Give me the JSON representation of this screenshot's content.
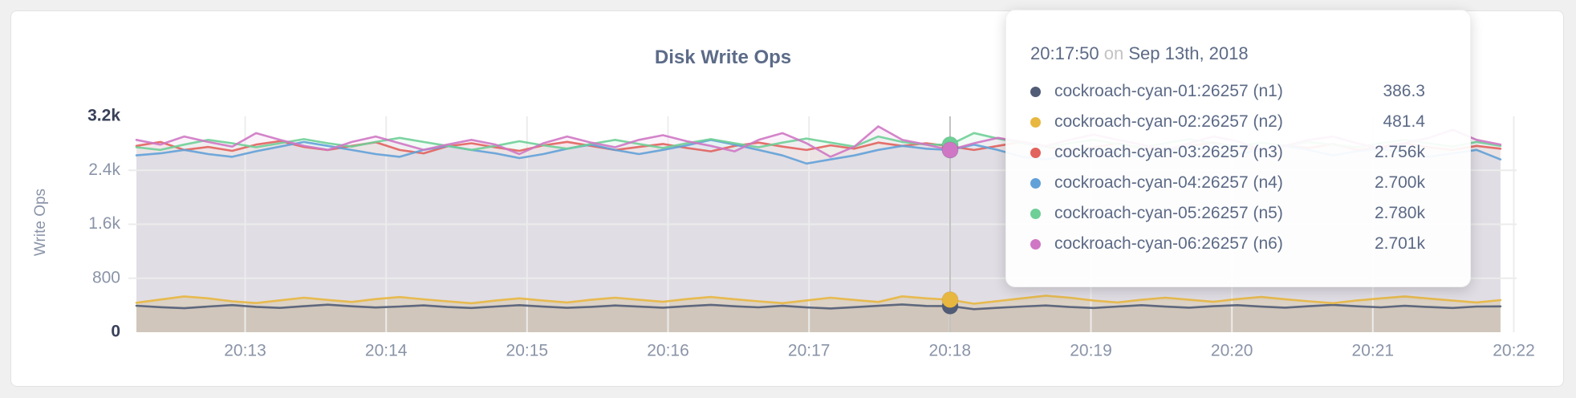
{
  "card": {
    "background": "#ffffff",
    "border_color": "#e2e2e2"
  },
  "chart_data": {
    "type": "line",
    "title": "Disk Write Ops",
    "ylabel": "Write Ops",
    "ylim": [
      0,
      3200
    ],
    "grid": true,
    "legend_position": "tooltip",
    "x_ticks": [
      "20:13",
      "20:14",
      "20:15",
      "20:16",
      "20:17",
      "20:18",
      "20:19",
      "20:20",
      "20:21",
      "20:22"
    ],
    "y_ticks": [
      {
        "label": "0",
        "value": 0,
        "emphasis": true,
        "gridline": false
      },
      {
        "label": "800",
        "value": 800,
        "emphasis": false,
        "gridline": true
      },
      {
        "label": "1.6k",
        "value": 1600,
        "emphasis": false,
        "gridline": true
      },
      {
        "label": "2.4k",
        "value": 2400,
        "emphasis": false,
        "gridline": true
      },
      {
        "label": "3.2k",
        "value": 3200,
        "emphasis": true,
        "gridline": false
      }
    ],
    "hover": {
      "index": 34,
      "time": "20:17:50",
      "date": "Sep 13th, 2018"
    },
    "series": [
      {
        "name": "cockroach-cyan-01:26257",
        "node": "n1",
        "color": "#515c76",
        "fill_opacity": 0.12,
        "values": [
          392,
          371,
          356,
          381,
          402,
          376,
          360,
          386,
          408,
          384,
          366,
          381,
          397,
          374,
          359,
          381,
          401,
          379,
          362,
          376,
          396,
          380,
          364,
          386,
          406,
          384,
          369,
          391,
          368,
          352,
          371,
          391,
          412,
          389,
          386.3,
          341,
          362,
          381,
          396,
          374,
          359,
          381,
          401,
          379,
          364,
          386,
          401,
          379,
          364,
          386,
          406,
          384,
          369,
          391,
          374,
          359,
          381,
          383
        ]
      },
      {
        "name": "cockroach-cyan-02:26257",
        "node": "n2",
        "color": "#e8b740",
        "fill_opacity": 0.22,
        "values": [
          436,
          484,
          531,
          502,
          458,
          432,
          472,
          512,
          478,
          449,
          491,
          521,
          488,
          458,
          429,
          469,
          502,
          469,
          441,
          481,
          512,
          481,
          451,
          491,
          522,
          489,
          458,
          431,
          471,
          512,
          478,
          449,
          532,
          502,
          481.4,
          422,
          462,
          502,
          541,
          512,
          469,
          441,
          481,
          512,
          481,
          451,
          491,
          522,
          489,
          458,
          431,
          471,
          502,
          531,
          499,
          469,
          441,
          476
        ]
      },
      {
        "name": "cockroach-cyan-03:26257",
        "node": "n3",
        "color": "#e2625d",
        "fill_opacity": 0.085,
        "values": [
          2762,
          2821,
          2703,
          2747,
          2688,
          2781,
          2832,
          2747,
          2701,
          2762,
          2816,
          2702,
          2652,
          2756,
          2801,
          2741,
          2688,
          2771,
          2822,
          2762,
          2701,
          2747,
          2791,
          2731,
          2681,
          2762,
          2811,
          2751,
          2701,
          2771,
          2721,
          2811,
          2762,
          2801,
          2756,
          2701,
          2762,
          2821,
          2751,
          2691,
          2741,
          2801,
          2731,
          2691,
          2762,
          2811,
          2741,
          2701,
          2771,
          2731,
          2791,
          2701,
          2751,
          2801,
          2741,
          2701,
          2762,
          2721
        ]
      },
      {
        "name": "cockroach-cyan-04:26257",
        "node": "n4",
        "color": "#62a1d8",
        "fill_opacity": 0.085,
        "values": [
          2622,
          2652,
          2703,
          2641,
          2601,
          2682,
          2752,
          2821,
          2762,
          2701,
          2641,
          2601,
          2703,
          2762,
          2701,
          2652,
          2581,
          2641,
          2721,
          2781,
          2701,
          2641,
          2703,
          2771,
          2851,
          2781,
          2701,
          2621,
          2501,
          2561,
          2621,
          2703,
          2762,
          2721,
          2700,
          2781,
          2701,
          2601,
          2561,
          2621,
          2701,
          2652,
          2601,
          2682,
          2741,
          2701,
          2641,
          2703,
          2762,
          2701,
          2621,
          2682,
          2721,
          2661,
          2601,
          2652,
          2703,
          2561
        ]
      },
      {
        "name": "cockroach-cyan-05:26257",
        "node": "n5",
        "color": "#6ecf97",
        "fill_opacity": 0.085,
        "values": [
          2742,
          2703,
          2781,
          2852,
          2801,
          2742,
          2801,
          2862,
          2801,
          2752,
          2821,
          2881,
          2821,
          2762,
          2703,
          2762,
          2831,
          2771,
          2721,
          2791,
          2852,
          2791,
          2731,
          2801,
          2862,
          2801,
          2742,
          2811,
          2871,
          2811,
          2752,
          2901,
          2821,
          2781,
          2780,
          2952,
          2871,
          2801,
          2742,
          2801,
          2852,
          2791,
          2742,
          2801,
          2862,
          2801,
          2752,
          2811,
          2762,
          2821,
          2781,
          2742,
          2801,
          2852,
          2801,
          2752,
          2821,
          2762
        ]
      },
      {
        "name": "cockroach-cyan-06:26257",
        "node": "n6",
        "color": "#cf77c4",
        "fill_opacity": 0.085,
        "values": [
          2852,
          2781,
          2901,
          2821,
          2752,
          2951,
          2852,
          2762,
          2703,
          2821,
          2901,
          2801,
          2703,
          2781,
          2852,
          2781,
          2641,
          2801,
          2901,
          2811,
          2742,
          2852,
          2921,
          2831,
          2762,
          2681,
          2852,
          2951,
          2801,
          2601,
          2752,
          3051,
          2852,
          2781,
          2701,
          2801,
          2881,
          2821,
          2762,
          2852,
          2931,
          2852,
          2781,
          2703,
          2801,
          2901,
          2831,
          2703,
          2762,
          2852,
          2901,
          2801,
          2721,
          2801,
          2881,
          3001,
          2852,
          2781
        ]
      }
    ]
  },
  "tooltip": {
    "time": "20:17:50",
    "on_word": "on",
    "date": "Sep 13th, 2018",
    "rows": [
      {
        "label": "cockroach-cyan-01:26257 (n1)",
        "value": "386.3",
        "color": "#515c76"
      },
      {
        "label": "cockroach-cyan-02:26257 (n2)",
        "value": "481.4",
        "color": "#e8b740"
      },
      {
        "label": "cockroach-cyan-03:26257 (n3)",
        "value": "2.756k",
        "color": "#e2625d"
      },
      {
        "label": "cockroach-cyan-04:26257 (n4)",
        "value": "2.700k",
        "color": "#62a1d8"
      },
      {
        "label": "cockroach-cyan-05:26257 (n5)",
        "value": "2.780k",
        "color": "#6ecf97"
      },
      {
        "label": "cockroach-cyan-06:26257 (n6)",
        "value": "2.701k",
        "color": "#cf77c4"
      }
    ]
  },
  "colors": {
    "grid": "#ececec",
    "hover_line": "#c2c2c2",
    "axis_text": "#8a94a8",
    "axis_text_emphasis": "#39415a",
    "title_text": "#5c6b88",
    "tooltip_text": "#5c6a86"
  }
}
